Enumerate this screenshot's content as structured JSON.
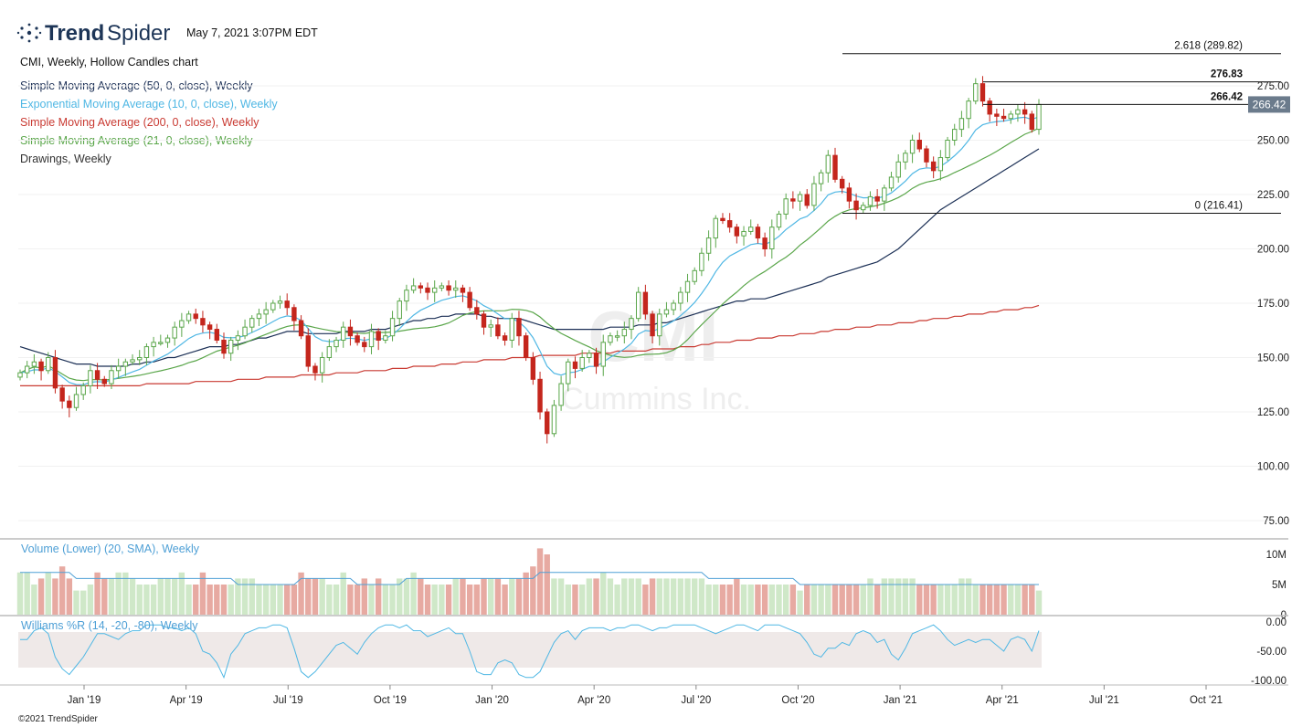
{
  "header": {
    "brand_trend": "Trend",
    "brand_spider": "Spider",
    "timestamp": "May 7, 2021 3:07PM EDT",
    "chart_title": "CMI, Weekly, Hollow Candles chart"
  },
  "legend": [
    {
      "label": "Simple Moving Average (50, 0, close), Weekly",
      "color": "#1b2f55"
    },
    {
      "label": "Exponential Moving Average (10, 0, close), Weekly",
      "color": "#4fb7e4"
    },
    {
      "label": "Simple Moving Average (200, 0, close), Weekly",
      "color": "#c93a32"
    },
    {
      "label": "Simple Moving Average (21, 0, close), Weekly",
      "color": "#5aa64a"
    },
    {
      "label": "Drawings, Weekly",
      "color": "#333333"
    }
  ],
  "watermark": {
    "symbol": "CMI",
    "name": "Cummins Inc."
  },
  "volume_label": "Volume (Lower) (20, SMA), Weekly",
  "williams_label": "Williams %R (14, -20, -80), Weekly",
  "copyright": "©2021 TrendSpider",
  "colors": {
    "up": "#5aa64a",
    "down": "#c4261d",
    "vol_up": "#cfe8c8",
    "vol_down": "#e7aaa2",
    "sma50": "#1b2f55",
    "ema10": "#4fb7e4",
    "sma200": "#c93a32",
    "sma21": "#5aa64a",
    "wr": "#4fb7e4",
    "price_tag_bg": "#6b7b8c"
  },
  "chart_data": {
    "type": "candlestick",
    "ticker": "CMI",
    "interval": "Weekly",
    "ylim": [
      70,
      295
    ],
    "y_ticks": [
      75,
      100,
      125,
      150,
      175,
      200,
      225,
      250,
      275
    ],
    "y_tick_labels": [
      "75.00",
      "100.00",
      "125.00",
      "150.00",
      "175.00",
      "200.00",
      "225.00",
      "250.00",
      "275.00"
    ],
    "x_ticks": [
      "Jan '19",
      "Apr '19",
      "Jul '19",
      "Oct '19",
      "Jan '20",
      "Apr '20",
      "Jul '20",
      "Oct '20",
      "Jan '21",
      "Apr '21",
      "Jul '21",
      "Oct '21"
    ],
    "last_price": "266.42",
    "fib_levels": [
      {
        "label": "2.618 (289.82)",
        "value": 289.82
      },
      {
        "label": "276.83",
        "value": 276.83
      },
      {
        "label": "266.42",
        "value": 266.42
      },
      {
        "label": "0 (216.41)",
        "value": 216.41
      }
    ],
    "closes": [
      143,
      146,
      148,
      144,
      150,
      136,
      130,
      127,
      133,
      137,
      144,
      140,
      138,
      144,
      146,
      148,
      149,
      150,
      155,
      157,
      157,
      159,
      164,
      167,
      170,
      168,
      165,
      163,
      158,
      152,
      158,
      160,
      164,
      168,
      170,
      172,
      175,
      176,
      173,
      167,
      160,
      146,
      143,
      150,
      155,
      158,
      164,
      160,
      157,
      155,
      162,
      158,
      160,
      168,
      176,
      181,
      183,
      182,
      180,
      182,
      183,
      181,
      182,
      180,
      173,
      170,
      164,
      165,
      160,
      158,
      168,
      160,
      150,
      140,
      125,
      115,
      128,
      138,
      148,
      145,
      150,
      152,
      146,
      157,
      160,
      160,
      163,
      168,
      180,
      170,
      160,
      170,
      172,
      175,
      180,
      185,
      190,
      198,
      205,
      214,
      213,
      210,
      206,
      208,
      210,
      205,
      200,
      210,
      216,
      223,
      222,
      225,
      220,
      230,
      235,
      243,
      232,
      228,
      222,
      218,
      220,
      224,
      222,
      228,
      233,
      240,
      244,
      250,
      246,
      240,
      236,
      242,
      250,
      255,
      260,
      268,
      276,
      268,
      262,
      261,
      260,
      262,
      264,
      262,
      255,
      266.42
    ],
    "sma50": [
      155,
      154,
      153,
      152,
      151,
      150,
      149,
      148,
      147,
      147,
      147,
      146,
      146,
      146,
      146,
      146,
      147,
      147,
      148,
      148,
      149,
      150,
      150,
      151,
      152,
      153,
      154,
      155,
      155,
      155,
      156,
      156,
      157,
      158,
      159,
      159,
      160,
      161,
      162,
      162,
      162,
      161,
      161,
      161,
      161,
      161,
      162,
      162,
      162,
      162,
      163,
      163,
      163,
      164,
      165,
      166,
      167,
      167,
      168,
      168,
      169,
      169,
      170,
      170,
      170,
      170,
      169,
      169,
      168,
      168,
      168,
      168,
      167,
      166,
      165,
      164,
      163,
      163,
      163,
      163,
      163,
      163,
      163,
      163,
      164,
      164,
      164,
      164,
      165,
      165,
      165,
      166,
      166,
      167,
      168,
      169,
      170,
      171,
      172,
      173,
      174,
      175,
      176,
      176,
      177,
      177,
      177,
      178,
      179,
      180,
      181,
      182,
      183,
      184,
      185,
      187,
      188,
      189,
      190,
      191,
      192,
      193,
      194,
      196,
      198,
      200,
      203,
      206,
      209,
      212,
      215,
      218,
      220,
      222,
      224,
      226,
      228,
      230,
      232,
      234,
      236,
      238,
      240,
      242,
      244,
      246
    ],
    "sma200": [
      137,
      137,
      137,
      137,
      137,
      137,
      137,
      137,
      137,
      137,
      137,
      137,
      137,
      137,
      137,
      137,
      137,
      137,
      138,
      138,
      138,
      138,
      138,
      138,
      138,
      139,
      139,
      139,
      139,
      139,
      139,
      140,
      140,
      140,
      140,
      141,
      141,
      141,
      141,
      141,
      142,
      142,
      142,
      142,
      142,
      143,
      143,
      143,
      143,
      144,
      144,
      144,
      144,
      145,
      145,
      145,
      146,
      146,
      146,
      146,
      147,
      147,
      147,
      148,
      148,
      148,
      149,
      149,
      149,
      149,
      150,
      150,
      150,
      150,
      151,
      151,
      151,
      151,
      151,
      151,
      152,
      152,
      152,
      152,
      152,
      153,
      153,
      153,
      153,
      153,
      154,
      154,
      154,
      154,
      155,
      155,
      155,
      156,
      156,
      157,
      157,
      157,
      158,
      158,
      158,
      159,
      159,
      159,
      160,
      160,
      160,
      161,
      161,
      161,
      162,
      162,
      163,
      163,
      163,
      164,
      164,
      164,
      165,
      165,
      165,
      166,
      166,
      166,
      167,
      167,
      168,
      168,
      168,
      169,
      169,
      170,
      170,
      170,
      171,
      171,
      172,
      172,
      172,
      173,
      173,
      174
    ]
  },
  "volume_data": {
    "y_ticks": [
      "10M",
      "5M",
      "0"
    ],
    "values": [
      7,
      7,
      5,
      6,
      7,
      6,
      8,
      6,
      4,
      4,
      5,
      7,
      6,
      6,
      7,
      7,
      6,
      5,
      5,
      5,
      6,
      6,
      6,
      7,
      5,
      5,
      7,
      5,
      5,
      5,
      5,
      6,
      6,
      6,
      5,
      5,
      5,
      5,
      5,
      5,
      7,
      6,
      6,
      6,
      5,
      5,
      7,
      5,
      5,
      6,
      5,
      6,
      5,
      5,
      6,
      6,
      7,
      6,
      5,
      5,
      5,
      5,
      6,
      6,
      5,
      5,
      6,
      6,
      6,
      5,
      6,
      6,
      7,
      8,
      11,
      10,
      6,
      6,
      5,
      5,
      5,
      6,
      6,
      7,
      6,
      5,
      6,
      6,
      6,
      5,
      6,
      6,
      6,
      6,
      6,
      6,
      6,
      6,
      5,
      5,
      5,
      5,
      6,
      5,
      5,
      5,
      5,
      5,
      5,
      5,
      5,
      4,
      5,
      5,
      5,
      5,
      5,
      5,
      5,
      5,
      5,
      6,
      5,
      6,
      6,
      6,
      6,
      6,
      5,
      5,
      5,
      5,
      5,
      5,
      6,
      6,
      5,
      5,
      5,
      5,
      5,
      5,
      5,
      5,
      5,
      4
    ],
    "sma": [
      7,
      7,
      7,
      7,
      7,
      7,
      7,
      7,
      6,
      6,
      6,
      6,
      6,
      6,
      6,
      6,
      6,
      6,
      6,
      6,
      6,
      6,
      6,
      6,
      6,
      6,
      6,
      6,
      6,
      6,
      6,
      5,
      5,
      5,
      5,
      5,
      5,
      5,
      5,
      5,
      6,
      6,
      6,
      6,
      6,
      6,
      6,
      6,
      5,
      5,
      5,
      5,
      5,
      5,
      5,
      6,
      6,
      6,
      6,
      6,
      6,
      6,
      6,
      6,
      6,
      6,
      6,
      6,
      6,
      6,
      6,
      6,
      6,
      6,
      7,
      7,
      7,
      7,
      7,
      7,
      7,
      7,
      7,
      7,
      7,
      7,
      7,
      7,
      7,
      7,
      7,
      7,
      7,
      7,
      7,
      7,
      7,
      7,
      6,
      6,
      6,
      6,
      6,
      6,
      6,
      6,
      6,
      6,
      6,
      6,
      6,
      5,
      5,
      5,
      5,
      5,
      5,
      5,
      5,
      5,
      5,
      5,
      5,
      5,
      5,
      5,
      5,
      5,
      5,
      5,
      5,
      5,
      5,
      5,
      5,
      5,
      5,
      5,
      5,
      5,
      5,
      5,
      5,
      5,
      5,
      5
    ]
  },
  "williams_data": {
    "y_ticks": [
      "0.00",
      "-50.00",
      "-100.00"
    ],
    "values": [
      -30,
      -30,
      -15,
      -10,
      -20,
      -60,
      -80,
      -90,
      -75,
      -60,
      -40,
      -20,
      -20,
      -25,
      -30,
      -20,
      -15,
      -15,
      -5,
      -5,
      -5,
      -10,
      -10,
      -15,
      -10,
      -20,
      -50,
      -55,
      -70,
      -95,
      -55,
      -40,
      -20,
      -15,
      -10,
      -10,
      -5,
      -5,
      -10,
      -45,
      -85,
      -95,
      -85,
      -70,
      -55,
      -40,
      -35,
      -45,
      -55,
      -35,
      -20,
      -10,
      -5,
      -5,
      -10,
      -5,
      -15,
      -15,
      -25,
      -20,
      -15,
      -10,
      -20,
      -20,
      -50,
      -85,
      -90,
      -90,
      -70,
      -65,
      -70,
      -90,
      -95,
      -95,
      -85,
      -60,
      -35,
      -20,
      -15,
      -30,
      -15,
      -10,
      -10,
      -10,
      -15,
      -10,
      -10,
      -5,
      -5,
      -10,
      -15,
      -10,
      -10,
      -5,
      -5,
      -5,
      -5,
      -10,
      -15,
      -20,
      -15,
      -10,
      -5,
      -5,
      -10,
      -15,
      -5,
      -5,
      -5,
      -10,
      -15,
      -20,
      -35,
      -55,
      -60,
      -45,
      -45,
      -35,
      -40,
      -20,
      -15,
      -20,
      -35,
      -30,
      -55,
      -65,
      -45,
      -20,
      -15,
      -10,
      -5,
      -15,
      -30,
      -40,
      -35,
      -30,
      -35,
      -30,
      -30,
      -40,
      -50,
      -30,
      -25,
      -30,
      -50,
      -15
    ]
  }
}
